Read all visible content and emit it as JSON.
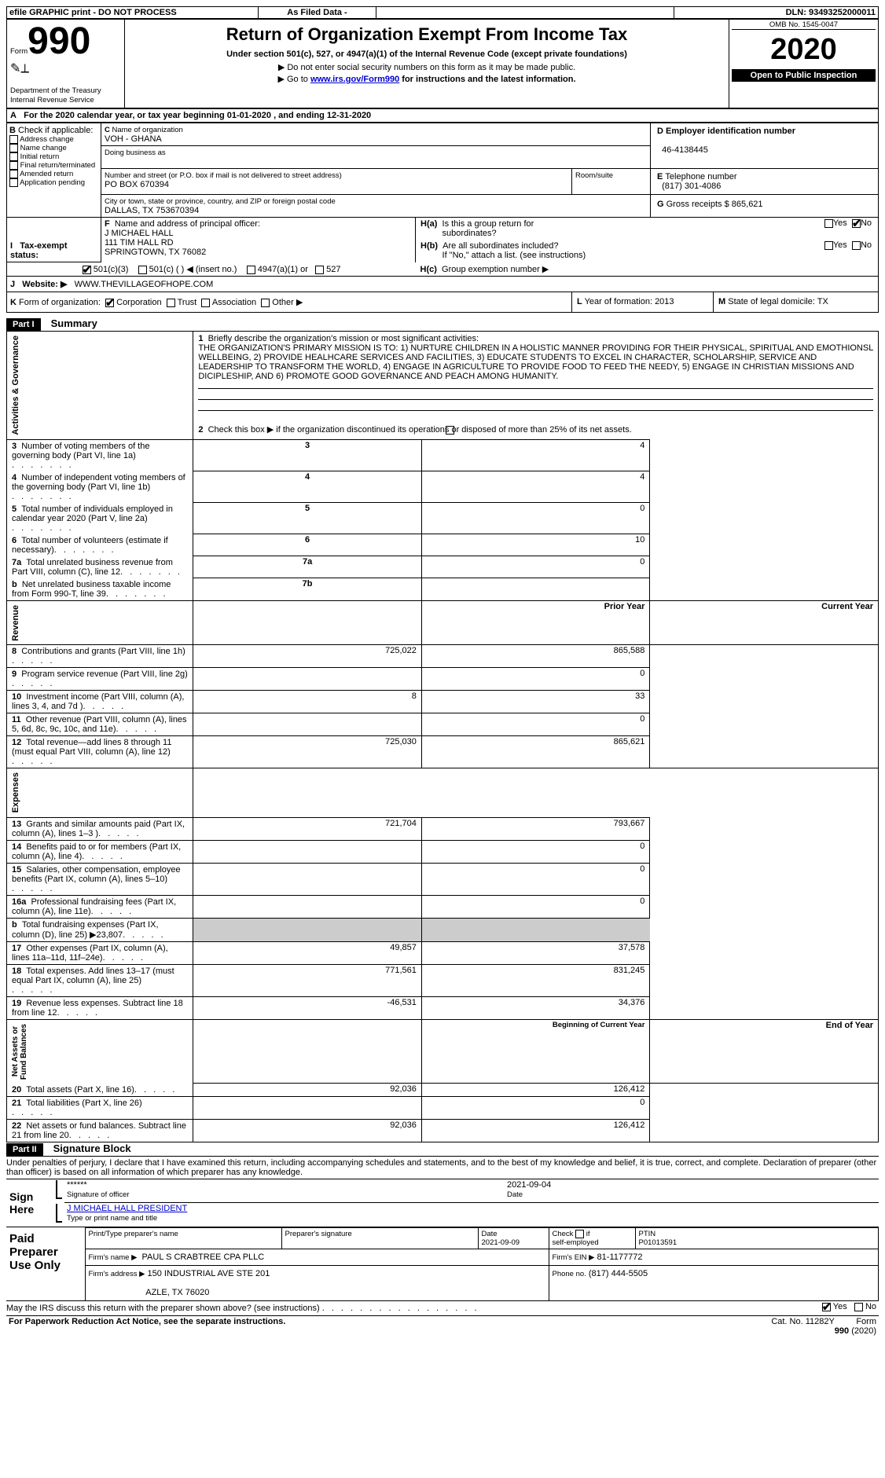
{
  "topbar": {
    "efile": "efile GRAPHIC print - DO NOT PROCESS",
    "asfiled": "As Filed Data -",
    "dln_label": "DLN:",
    "dln": "93493252000011"
  },
  "header": {
    "form_word": "Form",
    "form_num": "990",
    "dept": "Department of the Treasury\nInternal Revenue Service",
    "title": "Return of Organization Exempt From Income Tax",
    "subtitle": "Under section 501(c), 527, or 4947(a)(1) of the Internal Revenue Code (except private foundations)",
    "note1": "▶ Do not enter social security numbers on this form as it may be made public.",
    "note2_pre": "▶ Go to ",
    "note2_link": "www.irs.gov/Form990",
    "note2_post": " for instructions and the latest information.",
    "omb": "OMB No. 1545-0047",
    "year": "2020",
    "open": "Open to Public Inspection"
  },
  "A": {
    "text_pre": "For the 2020 calendar year, or tax year beginning ",
    "begin": "01-01-2020",
    "mid": "   , and ending ",
    "end": "12-31-2020"
  },
  "B": {
    "label": "Check if applicable:",
    "items": [
      "Address change",
      "Name change",
      "Initial return",
      "Final return/terminated",
      "Amended return",
      "Application pending"
    ]
  },
  "C": {
    "name_label": "Name of organization",
    "name": "VOH - GHANA",
    "dba_label": "Doing business as",
    "dba": "",
    "street_label": "Number and street (or P.O. box if mail is not delivered to street address)",
    "street": "PO BOX 670394",
    "room_label": "Room/suite",
    "room": "",
    "city_label": "City or town, state or province, country, and ZIP or foreign postal code",
    "city": "DALLAS, TX  753670394"
  },
  "D": {
    "label": "Employer identification number",
    "val": "46-4138445"
  },
  "E": {
    "label": "Telephone number",
    "val": "(817) 301-4086"
  },
  "G": {
    "label": "Gross receipts $",
    "val": "865,621"
  },
  "F": {
    "label": "Name and address of principal officer:",
    "name": "J MICHAEL HALL",
    "line2": "111 TIM HALL RD",
    "line3": "SPRINGTOWN, TX  76082"
  },
  "H": {
    "a_label": "Is this a group return for",
    "a_label2": "subordinates?",
    "b_label": "Are all subordinates included?",
    "b_note": "If \"No,\" attach a list. (see instructions)",
    "c_label": "Group exemption number ▶",
    "yes": "Yes",
    "no": "No"
  },
  "I": {
    "label": "Tax-exempt status:",
    "opts": [
      "501(c)(3)",
      "501(c) (   ) ◀ (insert no.)",
      "4947(a)(1) or",
      "527"
    ]
  },
  "J": {
    "label": "Website: ▶",
    "val": "WWW.THEVILLAGEOFHOPE.COM"
  },
  "K": {
    "label": "Form of organization:",
    "opts": [
      "Corporation",
      "Trust",
      "Association",
      "Other ▶"
    ]
  },
  "L": {
    "label": "Year of formation:",
    "val": "2013"
  },
  "M": {
    "label": "State of legal domicile:",
    "val": "TX"
  },
  "part1": {
    "tag": "Part I",
    "title": "Summary"
  },
  "mission": {
    "label": "Briefly describe the organization's mission or most significant activities:",
    "text": "THE ORGANIZATION'S PRIMARY MISSION IS TO: 1) NURTURE CHILDREN IN A HOLISTIC MANNER PROVIDING FOR THEIR PHYSICAL, SPIRITUAL AND EMOTHIONSL WELLBEING, 2) PROVIDE HEALHCARE SERVICES AND FACILITIES, 3) EDUCATE STUDENTS TO EXCEL IN CHARACTER, SCHOLARSHIP, SERVICE AND LEADERSHIP TO TRANSFORM THE WORLD, 4) ENGAGE IN AGRICULTURE TO PROVIDE FOOD TO FEED THE NEEDY, 5) ENGAGE IN CHRISTIAN MISSIONS AND DICIPLESHIP, AND 6) PROMOTE GOOD GOVERNANCE AND PEACH AMONG HUMANITY."
  },
  "line2": "Check this box ▶    if the organization discontinued its operations or disposed of more than 25% of its net assets.",
  "gov_rows": [
    {
      "n": "3",
      "t": "Number of voting members of the governing body (Part VI, line 1a)",
      "c": "3",
      "v": "4"
    },
    {
      "n": "4",
      "t": "Number of independent voting members of the governing body (Part VI, line 1b)",
      "c": "4",
      "v": "4"
    },
    {
      "n": "5",
      "t": "Total number of individuals employed in calendar year 2020 (Part V, line 2a)",
      "c": "5",
      "v": "0"
    },
    {
      "n": "6",
      "t": "Total number of volunteers (estimate if necessary)",
      "c": "6",
      "v": "10"
    },
    {
      "n": "7a",
      "t": "Total unrelated business revenue from Part VIII, column (C), line 12",
      "c": "7a",
      "v": "0"
    },
    {
      "n": "b",
      "t": "Net unrelated business taxable income from Form 990-T, line 39",
      "c": "7b",
      "v": ""
    }
  ],
  "col_hdr": {
    "prior": "Prior Year",
    "current": "Current Year"
  },
  "rev_rows": [
    {
      "n": "8",
      "t": "Contributions and grants (Part VIII, line 1h)",
      "p": "725,022",
      "c": "865,588"
    },
    {
      "n": "9",
      "t": "Program service revenue (Part VIII, line 2g)",
      "p": "",
      "c": "0"
    },
    {
      "n": "10",
      "t": "Investment income (Part VIII, column (A), lines 3, 4, and 7d )",
      "p": "8",
      "c": "33"
    },
    {
      "n": "11",
      "t": "Other revenue (Part VIII, column (A), lines 5, 6d, 8c, 9c, 10c, and 11e)",
      "p": "",
      "c": "0"
    },
    {
      "n": "12",
      "t": "Total revenue—add lines 8 through 11 (must equal Part VIII, column (A), line 12)",
      "p": "725,030",
      "c": "865,621"
    }
  ],
  "exp_rows": [
    {
      "n": "13",
      "t": "Grants and similar amounts paid (Part IX, column (A), lines 1–3 )",
      "p": "721,704",
      "c": "793,667"
    },
    {
      "n": "14",
      "t": "Benefits paid to or for members (Part IX, column (A), line 4)",
      "p": "",
      "c": "0"
    },
    {
      "n": "15",
      "t": "Salaries, other compensation, employee benefits (Part IX, column (A), lines 5–10)",
      "p": "",
      "c": "0"
    },
    {
      "n": "16a",
      "t": "Professional fundraising fees (Part IX, column (A), line 11e)",
      "p": "",
      "c": "0"
    },
    {
      "n": "b",
      "t": "Total fundraising expenses (Part IX, column (D), line 25) ▶23,807",
      "p": "—hide—",
      "c": "—hide—"
    },
    {
      "n": "17",
      "t": "Other expenses (Part IX, column (A), lines 11a–11d, 11f–24e)",
      "p": "49,857",
      "c": "37,578"
    },
    {
      "n": "18",
      "t": "Total expenses. Add lines 13–17 (must equal Part IX, column (A), line 25)",
      "p": "771,561",
      "c": "831,245"
    },
    {
      "n": "19",
      "t": "Revenue less expenses. Subtract line 18 from line 12",
      "p": "-46,531",
      "c": "34,376"
    }
  ],
  "na_hdr": {
    "begin": "Beginning of Current Year",
    "end": "End of Year"
  },
  "na_rows": [
    {
      "n": "20",
      "t": "Total assets (Part X, line 16)",
      "p": "92,036",
      "c": "126,412"
    },
    {
      "n": "21",
      "t": "Total liabilities (Part X, line 26)",
      "p": "",
      "c": "0"
    },
    {
      "n": "22",
      "t": "Net assets or fund balances. Subtract line 21 from line 20",
      "p": "92,036",
      "c": "126,412"
    }
  ],
  "labels": {
    "activities": "Activities & Governance",
    "revenue": "Revenue",
    "expenses": "Expenses",
    "netassets": "Net Assets or\nFund Balances"
  },
  "part2": {
    "tag": "Part II",
    "title": "Signature Block"
  },
  "perjury": "Under penalties of perjury, I declare that I have examined this return, including accompanying schedules and statements, and to the best of my knowledge and belief, it is true, correct, and complete. Declaration of preparer (other than officer) is based on all information of which preparer has any knowledge.",
  "sign": {
    "here": "Sign\nHere",
    "stars": "******",
    "sig_label": "Signature of officer",
    "date": "2021-09-04",
    "date_label": "Date",
    "name": "J MICHAEL HALL PRESIDENT",
    "name_label": "Type or print name and title"
  },
  "prep": {
    "title": "Paid\nPreparer\nUse Only",
    "col1": "Print/Type preparer's name",
    "col2": "Preparer's signature",
    "col3": "Date",
    "date": "2021-09-09",
    "check_lbl": "Check     if self-employed",
    "ptin_lbl": "PTIN",
    "ptin": "P01013591",
    "firm_name_lbl": "Firm's name    ▶",
    "firm_name": "PAUL S CRABTREE CPA PLLC",
    "firm_ein_lbl": "Firm's EIN ▶",
    "firm_ein": "81-1177772",
    "firm_addr_lbl": "Firm's address ▶",
    "firm_addr": "150 INDUSTRIAL AVE STE 201",
    "firm_city": "AZLE, TX  76020",
    "phone_lbl": "Phone no.",
    "phone": "(817) 444-5505"
  },
  "footer": {
    "discuss": "May the IRS discuss this return with the preparer shown above? (see instructions)",
    "yes": "Yes",
    "no": "No",
    "pra": "For Paperwork Reduction Act Notice, see the separate instructions.",
    "cat": "Cat. No. 11282Y",
    "form": "Form 990 (2020)"
  }
}
